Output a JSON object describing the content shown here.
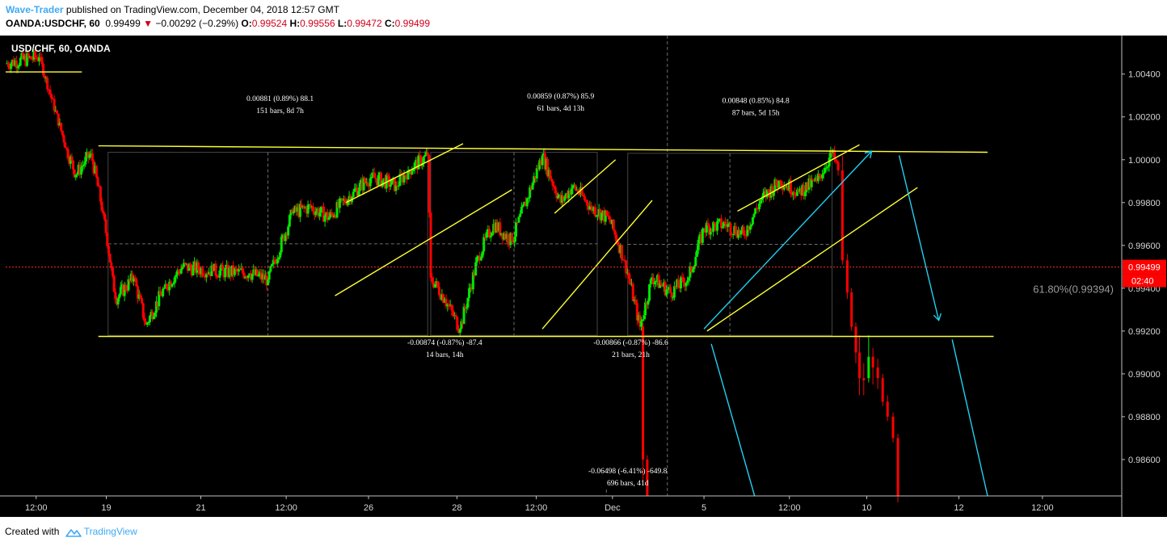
{
  "header": {
    "author": "Wave-Trader",
    "published_text": " published on TradingView.com, December 04, 2018 12:57 GMT",
    "symbol": "OANDA:USDCHF, 60",
    "last": "0.99499",
    "change_arrow": "▼",
    "change": "−0.00292 (−0.29%)",
    "o_label": "O:",
    "o_value": "0.99524",
    "h_label": "H:",
    "h_value": "0.99556",
    "l_label": "L:",
    "l_value": "0.99472",
    "c_label": "C:",
    "c_value": "0.99499"
  },
  "chart_label": "USD/CHF, 60, OANDA",
  "footer": {
    "created_with": "Created with",
    "brand": "TradingView",
    "logo_icon": "tradingview-cloud-icon"
  },
  "colors": {
    "background": "#000000",
    "up_candle": "#00e600",
    "down_candle": "#ff0000",
    "trendline": "#ffff33",
    "projection": "#20d0f0",
    "price_line": "#ff2a2a",
    "price_tag": "#ff0000",
    "axis_text": "#d6d6d6",
    "grid_dash": "#8a8a8a"
  },
  "chart_data": {
    "type": "candlestick",
    "title": "USD/CHF, 60, OANDA",
    "ylim": [
      0.9843,
      1.0058
    ],
    "y_ticks": [
      "1.00400",
      "1.00200",
      "1.00000",
      "0.99800",
      "0.99600",
      "0.99400",
      "0.99200",
      "0.99000",
      "0.98800",
      "0.98600"
    ],
    "x_ticks": [
      "12:00",
      "19",
      "21",
      "12:00",
      "26",
      "28",
      "12:00",
      "Dec",
      "5",
      "12:00",
      "10",
      "12",
      "12:00"
    ],
    "last_price": "0.99499",
    "countdown": "02:40",
    "fib_label": "61.80%(0.99394)",
    "range_top": 1.0004,
    "range_bottom": 0.9918,
    "price_path": [
      {
        "d": 0.0,
        "p": 1.0045
      },
      {
        "d": 0.55,
        "p": 1.0048
      },
      {
        "d": 1.0,
        "p": 1.0005
      },
      {
        "d": 1.15,
        "p": 0.9993
      },
      {
        "d": 1.4,
        "p": 1.0003
      },
      {
        "d": 1.6,
        "p": 0.9975
      },
      {
        "d": 1.8,
        "p": 0.9935
      },
      {
        "d": 2.1,
        "p": 0.9945
      },
      {
        "d": 2.3,
        "p": 0.9923
      },
      {
        "d": 2.6,
        "p": 0.994
      },
      {
        "d": 2.9,
        "p": 0.995
      },
      {
        "d": 3.4,
        "p": 0.9948
      },
      {
        "d": 4.0,
        "p": 0.9947
      },
      {
        "d": 4.3,
        "p": 0.9944
      },
      {
        "d": 4.7,
        "p": 0.9975
      },
      {
        "d": 5.0,
        "p": 0.9978
      },
      {
        "d": 5.3,
        "p": 0.9973
      },
      {
        "d": 5.7,
        "p": 0.9985
      },
      {
        "d": 6.0,
        "p": 0.9992
      },
      {
        "d": 6.4,
        "p": 0.9988
      },
      {
        "d": 6.6,
        "p": 0.9995
      },
      {
        "d": 6.92,
        "p": 1.0002
      },
      {
        "d": 6.97,
        "p": 0.9945
      },
      {
        "d": 7.2,
        "p": 0.9935
      },
      {
        "d": 7.45,
        "p": 0.9921
      },
      {
        "d": 7.75,
        "p": 0.9955
      },
      {
        "d": 8.0,
        "p": 0.997
      },
      {
        "d": 8.3,
        "p": 0.9962
      },
      {
        "d": 8.55,
        "p": 0.9982
      },
      {
        "d": 8.8,
        "p": 1.0002
      },
      {
        "d": 9.1,
        "p": 0.998
      },
      {
        "d": 9.3,
        "p": 0.9988
      },
      {
        "d": 9.6,
        "p": 0.9978
      },
      {
        "d": 9.9,
        "p": 0.9972
      },
      {
        "d": 10.15,
        "p": 0.9953
      },
      {
        "d": 10.4,
        "p": 0.9922
      },
      {
        "d": 10.6,
        "p": 0.9945
      },
      {
        "d": 10.9,
        "p": 0.9938
      },
      {
        "d": 11.2,
        "p": 0.9945
      },
      {
        "d": 11.45,
        "p": 0.9968
      },
      {
        "d": 11.8,
        "p": 0.997
      },
      {
        "d": 12.1,
        "p": 0.9965
      },
      {
        "d": 12.4,
        "p": 0.9982
      },
      {
        "d": 12.7,
        "p": 0.999
      },
      {
        "d": 13.0,
        "p": 0.9985
      },
      {
        "d": 13.3,
        "p": 0.999
      },
      {
        "d": 13.55,
        "p": 1.0003
      },
      {
        "d": 13.65,
        "p": 0.9995
      }
    ],
    "drop_candles": [
      {
        "d": 13.72,
        "o": 0.9995,
        "h": 1.0002,
        "l": 0.9951,
        "c": 0.9953
      },
      {
        "d": 13.8,
        "o": 0.9953,
        "h": 0.9956,
        "l": 0.9935,
        "c": 0.9938
      },
      {
        "d": 13.87,
        "o": 0.9938,
        "h": 0.994,
        "l": 0.992,
        "c": 0.9922
      },
      {
        "d": 13.94,
        "o": 0.9922,
        "h": 0.9924,
        "l": 0.9905,
        "c": 0.991
      },
      {
        "d": 14.0,
        "o": 0.991,
        "h": 0.9918,
        "l": 0.989,
        "c": 0.9898
      },
      {
        "d": 14.07,
        "o": 0.9898,
        "h": 0.9905,
        "l": 0.989,
        "c": 0.9897
      },
      {
        "d": 14.15,
        "o": 0.9898,
        "h": 0.9918,
        "l": 0.9896,
        "c": 0.9908
      },
      {
        "d": 14.22,
        "o": 0.9908,
        "h": 0.9912,
        "l": 0.9895,
        "c": 0.9903
      },
      {
        "d": 14.3,
        "o": 0.9903,
        "h": 0.9907,
        "l": 0.9893,
        "c": 0.9898
      },
      {
        "d": 14.38,
        "o": 0.9898,
        "h": 0.99,
        "l": 0.9885,
        "c": 0.9887
      },
      {
        "d": 14.46,
        "o": 0.9887,
        "h": 0.989,
        "l": 0.9878,
        "c": 0.988
      },
      {
        "d": 14.55,
        "o": 0.988,
        "h": 0.9882,
        "l": 0.9868,
        "c": 0.987
      },
      {
        "d": 14.63,
        "o": 0.987,
        "h": 0.9872,
        "l": 0.984,
        "c": 0.9843
      }
    ],
    "crash_leg": [
      {
        "d": 10.45,
        "o": 0.9922,
        "h": 0.9924,
        "l": 0.985,
        "c": 0.986
      },
      {
        "d": 10.52,
        "o": 0.986,
        "h": 0.9862,
        "l": 0.9843,
        "c": 0.9843
      }
    ],
    "measurements": [
      {
        "line1": "0.00881 (0.89%) 88.1",
        "line2": "151 bars, 8d 7h",
        "x": 4.5,
        "p": 1.00275
      },
      {
        "line1": "0.00859 (0.87%) 85.9",
        "line2": "61 bars, 4d 13h",
        "x": 9.1,
        "p": 1.00285
      },
      {
        "line1": "0.00848 (0.85%) 84.8",
        "line2": "87 bars, 5d 15h",
        "x": 12.3,
        "p": 1.00265
      },
      {
        "line1": "-0.00874 (-0.87%) -87.4",
        "line2": "14 bars, 14h",
        "x": 7.2,
        "p": 0.99135
      },
      {
        "line1": "-0.00866 (-0.87%) -86.6",
        "line2": "21 bars, 21h",
        "x": 10.25,
        "p": 0.99135
      },
      {
        "line1": "-0.06498 (-6.41%) -649.8",
        "line2": "696 bars, 41d",
        "x": 10.2,
        "p": 0.98535
      }
    ]
  }
}
